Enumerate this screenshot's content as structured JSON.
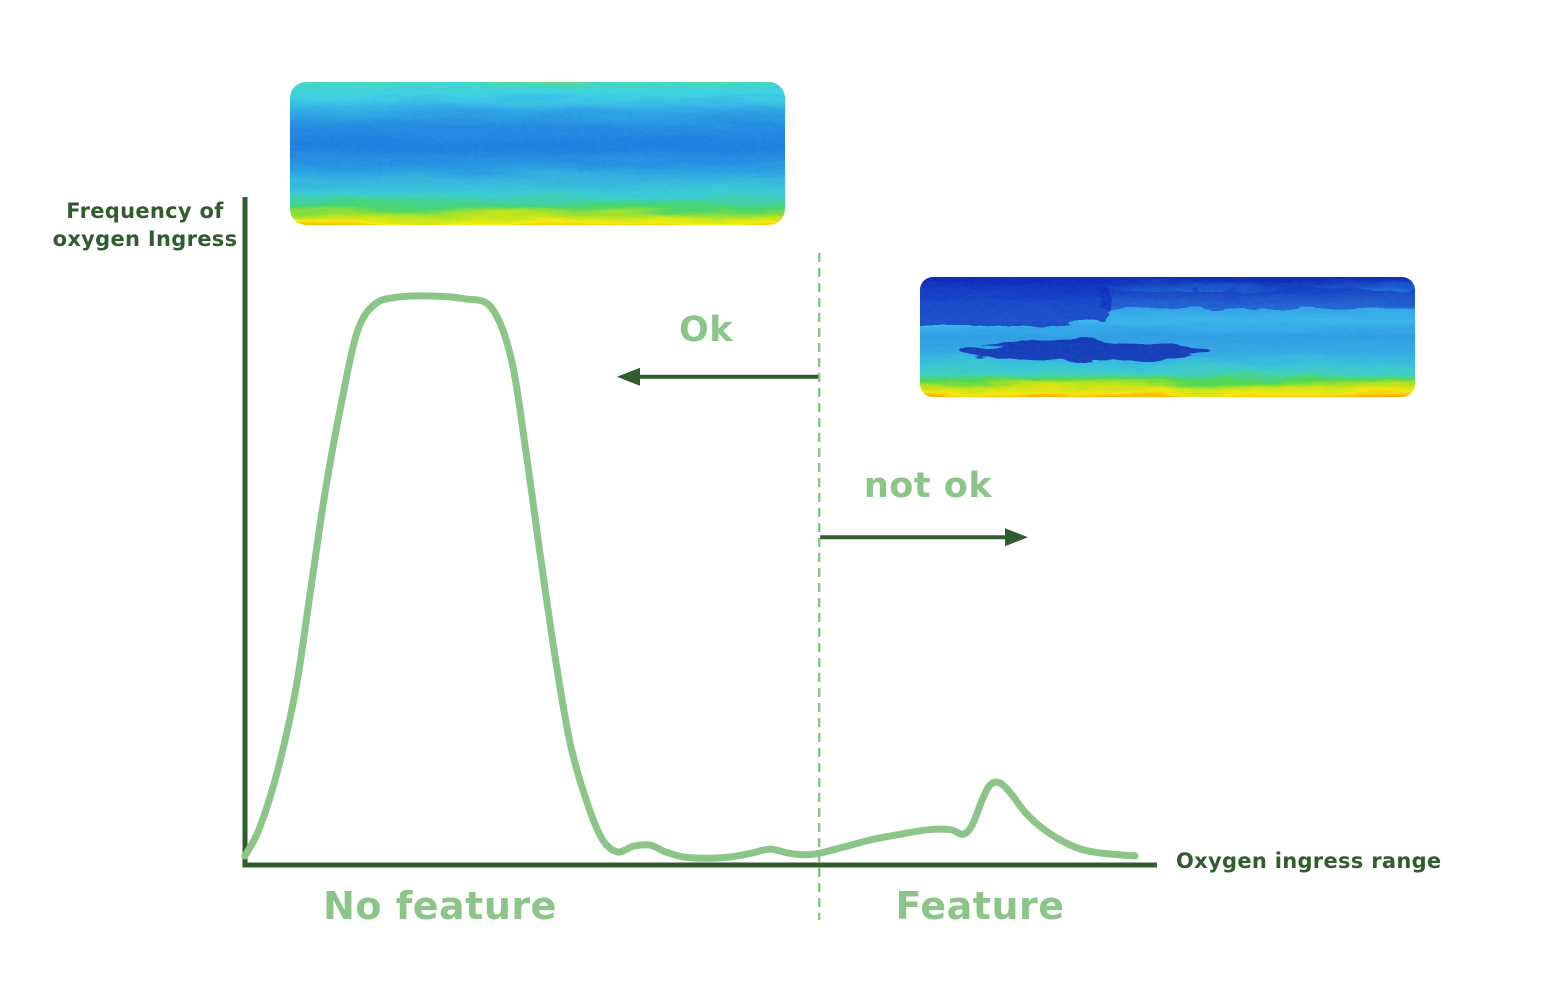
{
  "figure": {
    "y_axis_label_line1": "Frequency of",
    "y_axis_label_line2": "oxygen Ingress",
    "x_axis_label": "Oxygen ingress range",
    "ok_label": "Ok",
    "not_ok_label": "not ok",
    "no_feature_label": "No feature",
    "feature_label": "Feature"
  },
  "colors": {
    "dark_green": "#315c2e",
    "light_green": "#8bc688",
    "heatmap_jet_palette": [
      "#0b2ab8",
      "#1e7fe0",
      "#36c8e8",
      "#4fd84f",
      "#f2ea10",
      "#ff9b00",
      "#f43300"
    ]
  },
  "images": {
    "no_feature_heatmap_alt": "Thermal strip: blue core with cyan bands, yellow-to-red oxygen ingress only at thin top and bottom edges",
    "feature_heatmap_alt": "Thermal strip: dark navy upper band, cyan-blue middle, strong yellow-orange-red oxygen ingress band along the bottom"
  },
  "chart_data": {
    "type": "line",
    "title": "",
    "xlabel": "Oxygen ingress range",
    "ylabel": "Frequency of oxygen Ingress",
    "x_range_normalized": [
      0,
      1
    ],
    "ylim": [
      0,
      1.05
    ],
    "grid": false,
    "axis_ticks": "none",
    "legend": "none",
    "curve": {
      "x": [
        0.0,
        0.016,
        0.036,
        0.056,
        0.071,
        0.088,
        0.107,
        0.124,
        0.143,
        0.168,
        0.203,
        0.242,
        0.271,
        0.293,
        0.31,
        0.324,
        0.34,
        0.357,
        0.375,
        0.392,
        0.409,
        0.427,
        0.445,
        0.462,
        0.482,
        0.507,
        0.533,
        0.557,
        0.577,
        0.597,
        0.615,
        0.632,
        0.659,
        0.687,
        0.72,
        0.751,
        0.775,
        0.789,
        0.799,
        0.81,
        0.819,
        0.83,
        0.843,
        0.857,
        0.876,
        0.896,
        0.918,
        0.94,
        0.962,
        0.978
      ],
      "y": [
        0.016,
        0.065,
        0.167,
        0.311,
        0.471,
        0.655,
        0.821,
        0.94,
        0.986,
        0.998,
        1.0,
        0.995,
        0.979,
        0.887,
        0.712,
        0.55,
        0.374,
        0.216,
        0.114,
        0.047,
        0.023,
        0.033,
        0.035,
        0.023,
        0.014,
        0.012,
        0.014,
        0.021,
        0.028,
        0.021,
        0.018,
        0.021,
        0.032,
        0.044,
        0.054,
        0.062,
        0.062,
        0.054,
        0.07,
        0.114,
        0.141,
        0.144,
        0.123,
        0.093,
        0.065,
        0.044,
        0.028,
        0.021,
        0.018,
        0.016
      ]
    },
    "threshold_x": 0.631,
    "threshold_style": "dashed-vertical",
    "regions": [
      {
        "label": "No feature",
        "x_start": 0,
        "x_end": 0.631,
        "verdict": "Ok"
      },
      {
        "label": "Feature",
        "x_start": 0.631,
        "x_end": 1,
        "verdict": "not ok"
      }
    ],
    "annotations": [
      {
        "text": "Ok",
        "arrow_direction": "left",
        "arrow_y_normalized": 0.858
      },
      {
        "text": "not ok",
        "arrow_direction": "right",
        "arrow_y_normalized": 0.576
      }
    ]
  }
}
